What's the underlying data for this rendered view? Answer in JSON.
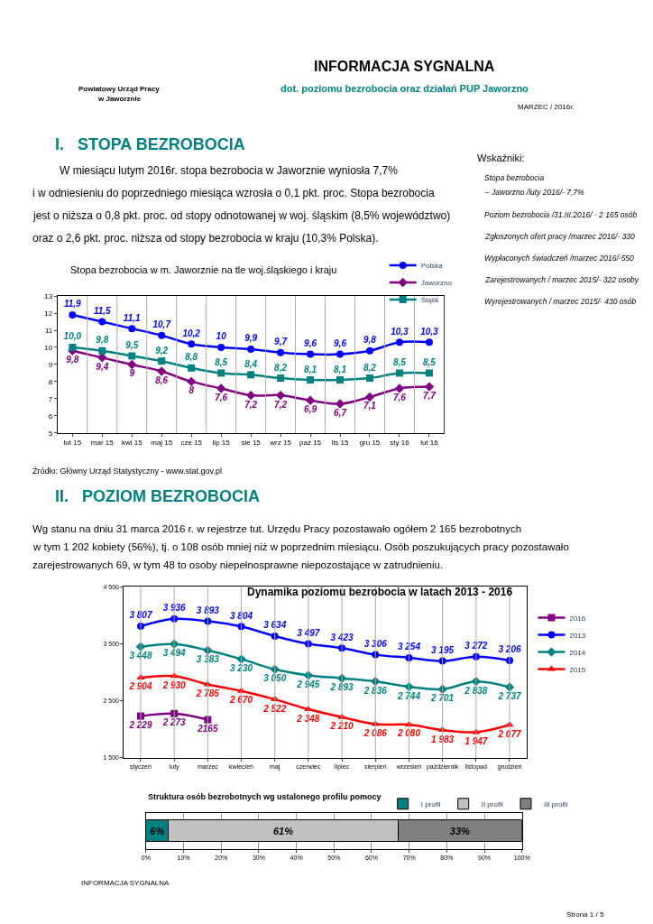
{
  "chart_data": [
    {
      "type": "line",
      "title": "Stopa bezrobocia w m. Jaworznie na tle woj.śląskiego i kraju",
      "categories": [
        "lut 15",
        "mar 15",
        "kwi 15",
        "maj 15",
        "cze 15",
        "lip 15",
        "sie 15",
        "wrz 15",
        "paź 15",
        "lis 15",
        "gru 15",
        "sty 16",
        "lut 16"
      ],
      "series": [
        {
          "name": "Polska",
          "color": "#0000ff",
          "marker": "circle",
          "values": [
            11.9,
            11.5,
            11.1,
            10.7,
            10.2,
            10,
            9.9,
            9.7,
            9.6,
            9.6,
            9.8,
            10.3,
            10.3
          ],
          "value_labels": [
            "11,9",
            "11,5",
            "11,1",
            "10,7",
            "10,2",
            "10",
            "9,9",
            "9,7",
            "9,6",
            "9,6",
            "9,8",
            "10,3",
            "10,3"
          ]
        },
        {
          "name": "Jaworzno",
          "color": "#800080",
          "marker": "diamond",
          "values": [
            9.8,
            9.4,
            9,
            8.6,
            8,
            7.6,
            7.2,
            7.2,
            6.9,
            6.7,
            7.1,
            7.6,
            7.7
          ],
          "value_labels": [
            "9,8",
            "9,4",
            "9",
            "8,6",
            "8",
            "7,6",
            "7,2",
            "7,2",
            "6,9",
            "6,7",
            "7,1",
            "7,6",
            "7,7"
          ]
        },
        {
          "name": "Śląsk",
          "color": "#008080",
          "marker": "square",
          "values": [
            10.0,
            9.8,
            9.5,
            9.2,
            8.8,
            8.5,
            8.4,
            8.2,
            8.1,
            8.1,
            8.2,
            8.5,
            8.5
          ],
          "value_labels": [
            "10,0",
            "9,8",
            "9,5",
            "9,2",
            "8,8",
            "8,5",
            "8,4",
            "8,2",
            "8,1",
            "8,1",
            "8,2",
            "8,5",
            "8,5"
          ]
        }
      ],
      "ylim": [
        5,
        13
      ],
      "yticks": [
        5,
        6,
        7,
        8,
        9,
        10,
        11,
        12,
        13
      ],
      "grid": "x",
      "legend": "top right",
      "line_style": "solid",
      "annotations": [
        "Powiatowy Urząd Pracy",
        "w Jaworznie",
        "INFORMACJA SYGNALNA",
        "dot. poziomu bezrobocia oraz działań PUP Jaworzno",
        "MARZEC / 2016r.",
        "I.   STOPA BEZROBOCIA",
        "W miesiącu lutym 2016r. stopa bezrobocia w Jaworznie wyniosła 7,7%",
        "i w odniesieniu do poprzedniego miesiąca wzrosła o 0,1 pkt. proc. Stopa bezrobocia",
        "jest o niższa o 0,8 pkt. proc. od stopy odnotowanej w woj. śląskim (8,5% województwo)",
        "oraz o 2,6 pkt. proc. niższa od stopy bezrobocia w kraju (10,3% Polska).",
        "Wskaźniki:",
        "Stopa bezrobocia",
        "– Jaworzno /luty 2016/- 7,7%",
        "Poziom bezrobocia /31.III.2016/ - 2 165 osób",
        "Zgłoszonych ofert pracy /marzec 2016/- 330",
        "Wypłaconych świadczeń /marzec 2016/-550",
        "Zarejestrowanych / marzec 2015/- 322 osoby",
        "Wyrejestrowanych / marzec 2015/- 430 osób",
        "Źródło: Główny Urząd Statystyczny - www.stat.gov.pl"
      ]
    },
    {
      "type": "line",
      "title": "Dynamika poziomu bezrobocia w latach 2013 - 2016",
      "categories": [
        "styczeń",
        "luty",
        "marzec",
        "kwiecień",
        "maj",
        "czerwiec",
        "lipiec",
        "sierpień",
        "wrzesień",
        "październik",
        "listopad",
        "grudzień"
      ],
      "series": [
        {
          "name": "2016",
          "color": "#800080",
          "marker": "square",
          "values": [
            2229,
            2273,
            2165,
            null,
            null,
            null,
            null,
            null,
            null,
            null,
            null,
            null
          ],
          "value_labels": [
            "2 229",
            "2 273",
            "2165",
            null,
            null,
            null,
            null,
            null,
            null,
            null,
            null,
            null
          ]
        },
        {
          "name": "2013",
          "color": "#0000ff",
          "marker": "circle",
          "values": [
            3807,
            3936,
            3893,
            3804,
            3634,
            3497,
            3423,
            3306,
            3254,
            3195,
            3272,
            3206
          ],
          "value_labels": [
            "3 807",
            "3 936",
            "3 893",
            "3 804",
            "3 634",
            "3 497",
            "3 423",
            "3 306",
            "3 254",
            "3 195",
            "3 272",
            "3 206"
          ]
        },
        {
          "name": "2014",
          "color": "#008080",
          "marker": "diamond",
          "values": [
            3448,
            3494,
            3383,
            3230,
            3050,
            2945,
            2893,
            2836,
            2744,
            2701,
            2838,
            2737
          ],
          "value_labels": [
            "3 448",
            "3 494",
            "3 383",
            "3 230",
            "3 050",
            "2 945",
            "2 893",
            "2 836",
            "2 744",
            "2 701",
            "2 838",
            "2 737"
          ]
        },
        {
          "name": "2015",
          "color": "#ff0000",
          "marker": "triangle",
          "values": [
            2904,
            2930,
            2785,
            2670,
            2522,
            2348,
            2210,
            2086,
            2080,
            1983,
            1947,
            2077
          ],
          "value_labels": [
            "2 904",
            "2 930",
            "2 785",
            "2 670",
            "2 522",
            "2 348",
            "2 210",
            "2 086",
            "2 080",
            "1 983",
            "1 947",
            "2 077"
          ]
        }
      ],
      "ylim": [
        1500,
        4500
      ],
      "yticks": [
        {
          "value": 1500,
          "label": "1 500"
        },
        {
          "value": 2500,
          "label": "2 500"
        },
        {
          "value": 3500,
          "label": "3 500"
        },
        {
          "value": 4500,
          "label": "4 500"
        }
      ],
      "grid": "x",
      "legend": "right",
      "line_style": "solid",
      "annotations": [
        "II.   POZIOM BEZROBOCIA",
        "Wg stanu na dniu 31 marca 2016 r. w rejestrze tut. Urzędu Pracy pozostawało ogółem 2 165 bezrobotnych",
        "w tym 1 202 kobiety (56%), tj. o 108 osób mniej niż w poprzednim miesiącu. Osób poszukujących pracy pozostawało",
        "zarejestrowanych 69, w tym 48 to osoby niepełnosprawne niepozostające w zatrudnieniu."
      ]
    },
    {
      "type": "bar",
      "title": "Struktura osób bezrobotnych wg ustalonego profilu pomocy",
      "orientation": "horizontal",
      "stacked": true,
      "categories": [
        null
      ],
      "series": [
        {
          "name": "I profil",
          "color": "#008080",
          "values": [
            6
          ],
          "value_labels": [
            "6%"
          ]
        },
        {
          "name": "II profil",
          "color": "#c0c0c0",
          "values": [
            61
          ],
          "value_labels": [
            "61%"
          ]
        },
        {
          "name": "III profil",
          "color": "#808080",
          "values": [
            33
          ],
          "value_labels": [
            "33%"
          ]
        }
      ],
      "xlim": [
        0,
        100
      ],
      "xticks": [
        {
          "value": 0,
          "label": "0%"
        },
        {
          "value": 10,
          "label": "10%"
        },
        {
          "value": 20,
          "label": "20%"
        },
        {
          "value": 30,
          "label": "30%"
        },
        {
          "value": 40,
          "label": "40%"
        },
        {
          "value": 50,
          "label": "50%"
        },
        {
          "value": 60,
          "label": "60%"
        },
        {
          "value": 70,
          "label": "70%"
        },
        {
          "value": 80,
          "label": "80%"
        },
        {
          "value": 90,
          "label": "90%"
        },
        {
          "value": 100,
          "label": "100%"
        }
      ],
      "grid": "x",
      "legend": "top right",
      "annotations": [
        "INFORMACJA SYGNALNA",
        "Strona 1 / 5"
      ]
    }
  ]
}
